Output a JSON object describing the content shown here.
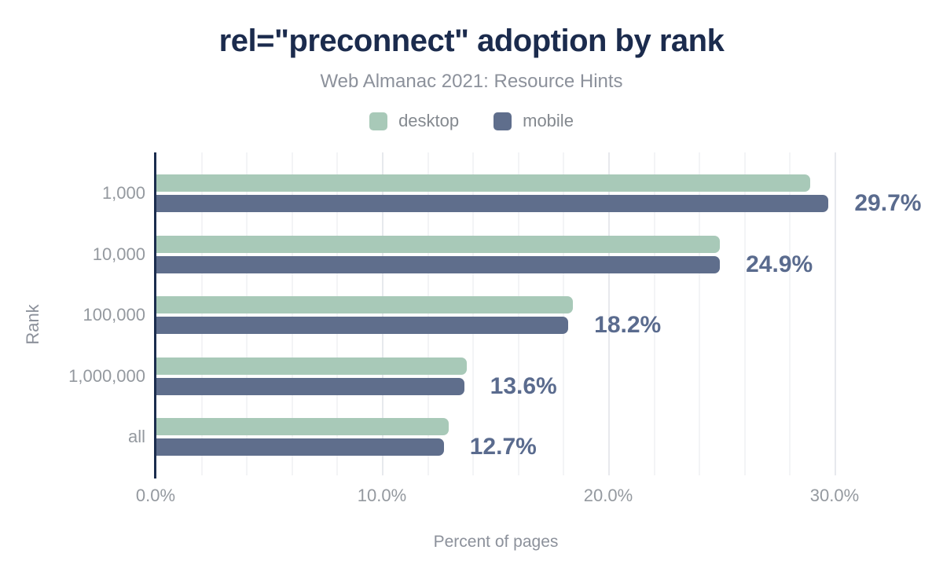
{
  "title": "rel=\"preconnect\" adoption by rank",
  "subtitle": "Web Almanac 2021: Resource Hints",
  "legend": {
    "items": [
      {
        "label": "desktop",
        "color": "#a8c9b8"
      },
      {
        "label": "mobile",
        "color": "#5f6e8c"
      }
    ]
  },
  "chart_data": {
    "type": "bar",
    "orientation": "horizontal",
    "title": "rel=\"preconnect\" adoption by rank",
    "subtitle": "Web Almanac 2021: Resource Hints",
    "xlabel": "Percent of pages",
    "ylabel": "Rank",
    "categories": [
      "1,000",
      "10,000",
      "100,000",
      "1,000,000",
      "all"
    ],
    "series": [
      {
        "name": "desktop",
        "color": "#a8c9b8",
        "values": [
          28.9,
          24.9,
          18.4,
          13.7,
          12.9
        ]
      },
      {
        "name": "mobile",
        "color": "#5f6e8c",
        "values": [
          29.7,
          24.9,
          18.2,
          13.6,
          12.7
        ]
      }
    ],
    "data_labels": {
      "series": "mobile",
      "values": [
        "29.7%",
        "24.9%",
        "18.2%",
        "13.6%",
        "12.7%"
      ],
      "color": "#5a6b8e"
    },
    "x_ticks": [
      {
        "label": "0.0%",
        "value": 0
      },
      {
        "label": "10.0%",
        "value": 10
      },
      {
        "label": "20.0%",
        "value": 20
      },
      {
        "label": "30.0%",
        "value": 30
      }
    ],
    "xlim": [
      0,
      32.6
    ],
    "grid": {
      "axis": "x",
      "step": 2,
      "max": 30
    },
    "legend_position": "top"
  },
  "style_colors": {
    "title": "#1b2b4d",
    "axis_line": "#1b2d4e",
    "tick_text": "#94999f",
    "muted_text": "#8c919b",
    "grid_minor": "#f3f4f6",
    "grid_major": "#e7e9ed"
  }
}
